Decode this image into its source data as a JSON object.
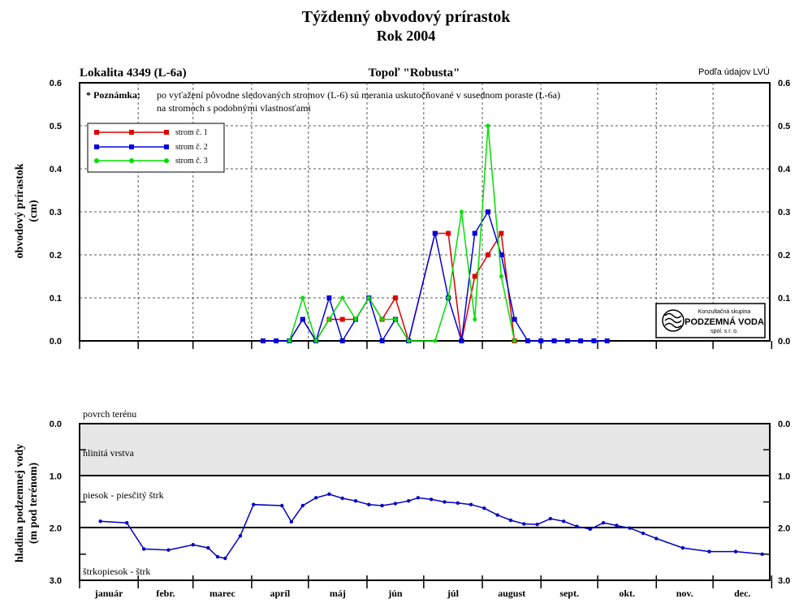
{
  "title": "Týždenný obvodový prírastok",
  "subtitle": "Rok 2004",
  "header": {
    "left": "Lokalita 4349 (L-6a)",
    "center": "Topoľ \"Robusta\"",
    "right": "Podľa údajov LVÚ"
  },
  "note": {
    "label": "* Poznámka:",
    "line1": "po vyťažení pôvodne sledovaných stromov (L-6) sú merania uskutočňované v susednom poraste (L-6a)",
    "line2": "na stromoch s podobnými vlastnosťami"
  },
  "logo": {
    "line1": "Konzultačná skupina",
    "line2": "PODZEMNÁ VODA",
    "line3": "spol. s r. o."
  },
  "colors": {
    "series1": "#e00000",
    "series2": "#0000e0",
    "series3": "#00e000",
    "groundwater": "#0000c0",
    "clay_band": "#e6e6e6"
  },
  "months": [
    "január",
    "febr.",
    "marec",
    "apríl",
    "máj",
    "jún",
    "júl",
    "august",
    "sept.",
    "okt.",
    "nov.",
    "dec."
  ],
  "chart_data": [
    {
      "type": "line",
      "ylabel_line1": "obvodový prírastok",
      "ylabel_line2": "(cm)",
      "ylim": [
        0,
        0.6
      ],
      "yticks": [
        "0.0",
        "0.1",
        "0.2",
        "0.3",
        "0.4",
        "0.5",
        "0.6"
      ],
      "x_unit": "day of year 2004",
      "xlim": [
        1,
        366
      ],
      "grid": true,
      "legend_position": "top-left",
      "series": [
        {
          "name": "strom č. 1",
          "color": "#e00000",
          "points": [
            [
              112,
              0
            ],
            [
              119,
              0.05
            ],
            [
              126,
              0
            ],
            [
              133,
              0.05
            ],
            [
              140,
              0.05
            ],
            [
              147,
              0.05
            ],
            [
              154,
              0.1
            ],
            [
              161,
              0.05
            ],
            [
              168,
              0.1
            ],
            [
              175,
              0
            ],
            [
              189,
              0.25
            ],
            [
              196,
              0.25
            ],
            [
              203,
              0
            ],
            [
              210,
              0.15
            ],
            [
              217,
              0.2
            ],
            [
              224,
              0.25
            ],
            [
              231,
              0
            ]
          ]
        },
        {
          "name": "strom č. 2",
          "color": "#0000e0",
          "points": [
            [
              98,
              0
            ],
            [
              105,
              0
            ],
            [
              112,
              0
            ],
            [
              119,
              0.05
            ],
            [
              126,
              0
            ],
            [
              133,
              0.1
            ],
            [
              140,
              0
            ],
            [
              147,
              0.05
            ],
            [
              154,
              0.1
            ],
            [
              161,
              0
            ],
            [
              168,
              0.05
            ],
            [
              175,
              0
            ],
            [
              189,
              0.25
            ],
            [
              196,
              0.1
            ],
            [
              203,
              0
            ],
            [
              210,
              0.25
            ],
            [
              217,
              0.3
            ],
            [
              224,
              0.2
            ],
            [
              231,
              0.05
            ],
            [
              238,
              0
            ],
            [
              245,
              0
            ],
            [
              252,
              0
            ],
            [
              259,
              0
            ],
            [
              266,
              0
            ],
            [
              273,
              0
            ],
            [
              280,
              0
            ]
          ]
        },
        {
          "name": "strom č. 3",
          "color": "#00e000",
          "points": [
            [
              112,
              0
            ],
            [
              119,
              0.1
            ],
            [
              126,
              0
            ],
            [
              133,
              0.05
            ],
            [
              140,
              0.1
            ],
            [
              147,
              0.05
            ],
            [
              154,
              0.1
            ],
            [
              161,
              0.05
            ],
            [
              168,
              0.05
            ],
            [
              175,
              0
            ],
            [
              189,
              0
            ],
            [
              196,
              0.1
            ],
            [
              203,
              0.3
            ],
            [
              210,
              0.05
            ],
            [
              217,
              0.5
            ],
            [
              224,
              0.15
            ],
            [
              231,
              0
            ]
          ]
        }
      ]
    },
    {
      "type": "line",
      "ylabel_line1": "hladina podzemnej vody",
      "ylabel_line2": "(m pod terénom)",
      "ylim": [
        0,
        3
      ],
      "inverted": true,
      "yticks": [
        "0.0",
        "1.0",
        "2.0",
        "3.0"
      ],
      "x_unit": "day of year 2004",
      "xlim": [
        1,
        366
      ],
      "layers": [
        {
          "label": "povrch terénu",
          "depth": 0
        },
        {
          "label": "hlinitá vrstva",
          "from": 0,
          "to": 1.0
        },
        {
          "label": "piesok - piesčitý štrk",
          "from": 1.0,
          "to": 2.0
        },
        {
          "label": "štrkopiesok - štrk",
          "from": 2.0,
          "to": 3.0
        }
      ],
      "series": [
        {
          "color": "#0000c0",
          "points": [
            [
              12,
              1.87
            ],
            [
              26,
              1.9
            ],
            [
              35,
              2.4
            ],
            [
              48,
              2.42
            ],
            [
              61,
              2.32
            ],
            [
              69,
              2.38
            ],
            [
              74,
              2.55
            ],
            [
              78,
              2.58
            ],
            [
              86,
              2.15
            ],
            [
              93,
              1.55
            ],
            [
              108,
              1.57
            ],
            [
              113,
              1.88
            ],
            [
              119,
              1.57
            ],
            [
              126,
              1.42
            ],
            [
              133,
              1.35
            ],
            [
              140,
              1.43
            ],
            [
              147,
              1.48
            ],
            [
              154,
              1.55
            ],
            [
              161,
              1.57
            ],
            [
              168,
              1.53
            ],
            [
              175,
              1.48
            ],
            [
              180,
              1.42
            ],
            [
              187,
              1.45
            ],
            [
              194,
              1.5
            ],
            [
              201,
              1.52
            ],
            [
              208,
              1.55
            ],
            [
              215,
              1.62
            ],
            [
              222,
              1.75
            ],
            [
              229,
              1.85
            ],
            [
              236,
              1.92
            ],
            [
              243,
              1.93
            ],
            [
              250,
              1.82
            ],
            [
              257,
              1.87
            ],
            [
              264,
              1.97
            ],
            [
              271,
              2.02
            ],
            [
              278,
              1.9
            ],
            [
              285,
              1.95
            ],
            [
              292,
              2.0
            ],
            [
              299,
              2.1
            ],
            [
              306,
              2.2
            ],
            [
              320,
              2.38
            ],
            [
              334,
              2.45
            ],
            [
              348,
              2.45
            ],
            [
              362,
              2.5
            ]
          ]
        }
      ]
    }
  ]
}
